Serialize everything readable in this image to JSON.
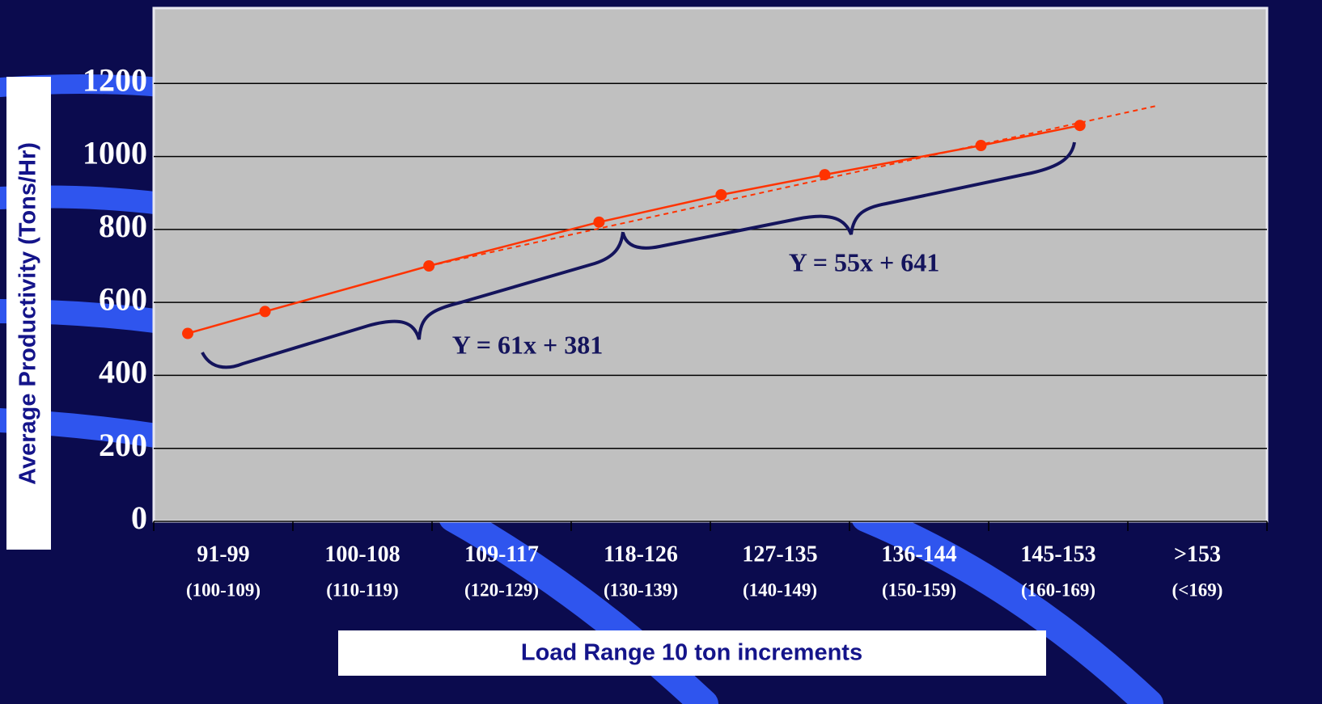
{
  "chart_data": {
    "type": "line",
    "categories": [
      "91-99",
      "100-108",
      "109-117",
      "118-126",
      "127-135",
      "136-144",
      "145-153",
      ">153"
    ],
    "sub_categories": [
      "(100-109)",
      "(110-119)",
      "(120-129)",
      "(130-139)",
      "(140-149)",
      "(150-159)",
      "(160-169)",
      "(<169)"
    ],
    "x": [
      93.2,
      98.2,
      108.8,
      119.8,
      127.7,
      134.4,
      144.5,
      150.9
    ],
    "series": [
      {
        "color": "#ff3300",
        "values": [
          515,
          575,
          700,
          820,
          895,
          950,
          1030,
          1085
        ]
      }
    ],
    "trend_line": {
      "x": [
        108.8,
        156
      ],
      "y": [
        700,
        1140
      ],
      "color": "#ff3300",
      "dashed": true
    },
    "xlim": [
      91,
      163
    ],
    "ylim": [
      0,
      1400
    ],
    "yticks": [
      0,
      200,
      400,
      600,
      800,
      1000,
      1200
    ],
    "grid": true,
    "ylabel": "Average Productivity (Tons/Hr)",
    "xlabel": "Load Range 10 ton increments",
    "annotations": [
      "Y = 61x + 381",
      "Y = 55x + 641"
    ]
  }
}
